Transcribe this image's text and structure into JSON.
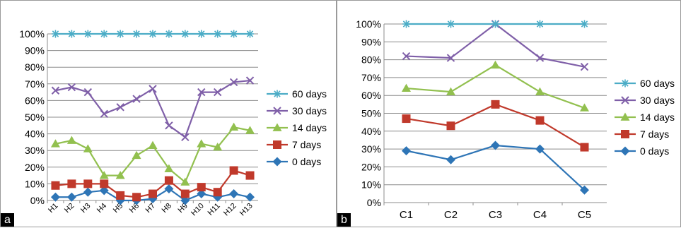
{
  "panel_labels": [
    "a",
    "b"
  ],
  "chart_data": [
    {
      "type": "line",
      "panel": "a",
      "categories": [
        "H1",
        "H2",
        "H3",
        "H4",
        "H5",
        "H6",
        "H7",
        "H8",
        "H9",
        "H10",
        "H11",
        "H12",
        "H13"
      ],
      "ylim": [
        0,
        100
      ],
      "yticks": [
        "0%",
        "10%",
        "20%",
        "30%",
        "40%",
        "50%",
        "60%",
        "70%",
        "80%",
        "90%",
        "100%"
      ],
      "grid": true,
      "legend_position": "right",
      "series": [
        {
          "name": "60 days",
          "color": "#4bacc6",
          "marker": "star",
          "values": [
            100,
            100,
            100,
            100,
            100,
            100,
            100,
            100,
            100,
            100,
            100,
            100,
            100
          ]
        },
        {
          "name": "30 days",
          "color": "#7f5fa8",
          "marker": "x",
          "values": [
            66,
            68,
            65,
            52,
            56,
            61,
            67,
            45,
            38,
            65,
            65,
            71,
            72
          ]
        },
        {
          "name": "14 days",
          "color": "#92c04f",
          "marker": "triangle",
          "values": [
            34,
            36,
            31,
            15,
            15,
            27,
            33,
            19,
            11,
            34,
            32,
            44,
            42
          ]
        },
        {
          "name": "7 days",
          "color": "#c0392b",
          "marker": "square",
          "values": [
            9,
            10,
            10,
            10,
            3,
            2,
            4,
            12,
            4,
            8,
            5,
            18,
            15
          ]
        },
        {
          "name": "0 days",
          "color": "#2e75b6",
          "marker": "diamond",
          "values": [
            2,
            2,
            5,
            6,
            0,
            0,
            1,
            7,
            0,
            4,
            2,
            4,
            2
          ]
        }
      ]
    },
    {
      "type": "line",
      "panel": "b",
      "categories": [
        "C1",
        "C2",
        "C3",
        "C4",
        "C5"
      ],
      "ylim": [
        0,
        100
      ],
      "yticks": [
        "0%",
        "10%",
        "20%",
        "30%",
        "40%",
        "50%",
        "60%",
        "70%",
        "80%",
        "90%",
        "100%"
      ],
      "grid": true,
      "legend_position": "right",
      "series": [
        {
          "name": "60 days",
          "color": "#4bacc6",
          "marker": "star",
          "values": [
            100,
            100,
            100,
            100,
            100
          ]
        },
        {
          "name": "30 days",
          "color": "#7f5fa8",
          "marker": "x",
          "values": [
            82,
            81,
            100,
            81,
            76
          ]
        },
        {
          "name": "14 days",
          "color": "#92c04f",
          "marker": "triangle",
          "values": [
            64,
            62,
            77,
            62,
            53
          ]
        },
        {
          "name": "7 days",
          "color": "#c0392b",
          "marker": "square",
          "values": [
            47,
            43,
            55,
            46,
            31
          ]
        },
        {
          "name": "0 days",
          "color": "#2e75b6",
          "marker": "diamond",
          "values": [
            29,
            24,
            32,
            30,
            7
          ]
        }
      ]
    }
  ]
}
